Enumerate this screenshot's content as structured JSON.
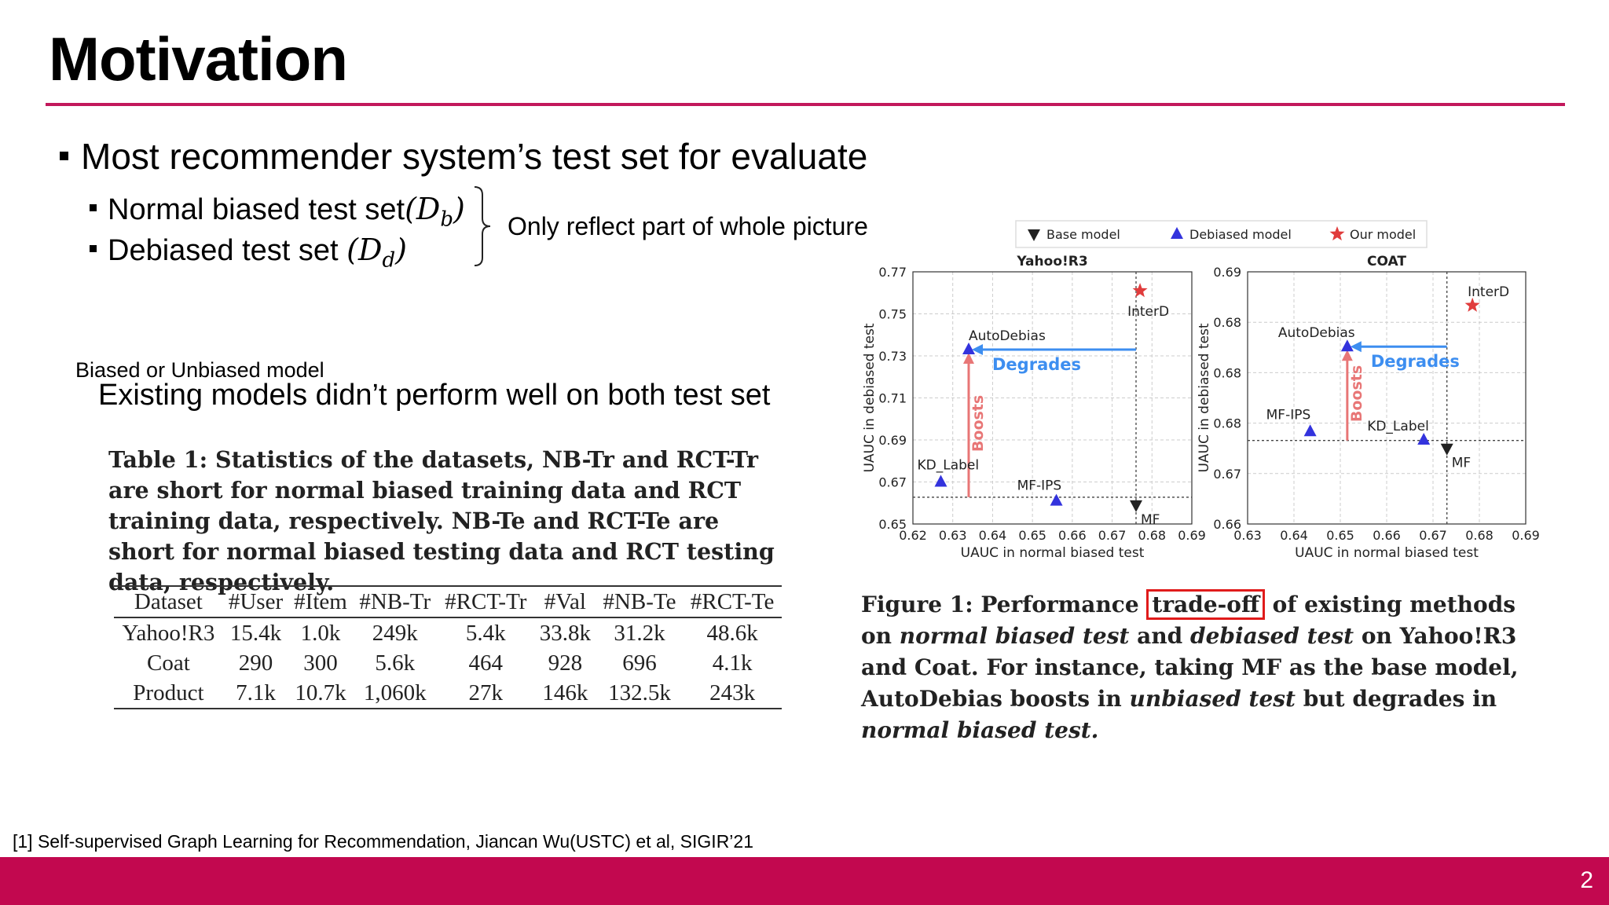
{
  "slide": {
    "title": "Motivation",
    "bullet_main": "Most recommender system’s test set for evaluate",
    "sub1_text": "Normal biased test set",
    "sub1_math": "(D",
    "sub1_sub": "b",
    "sub1_close": ")",
    "sub2_text": "Debiased test set ",
    "sub2_math": "(D",
    "sub2_sub": "d",
    "sub2_close": ")",
    "brace_note": "Only reflect part of whole picture",
    "small_label": "Biased or Unbiased model",
    "existing_text": "Existing models didn’t perform well on both test set",
    "footnote": "[1] Self-supervised Graph Learning for Recommendation, Jiancan Wu(USTC) et al, SIGIR’21",
    "page_number": "2",
    "accent_color": "#c2084f"
  },
  "table": {
    "caption": "Table 1: Statistics of the datasets, NB-Tr and RCT-Tr are short for normal biased training data and RCT training data, respectively. NB-Te and RCT-Te are short for normal biased testing data and RCT testing data, respectively.",
    "headers": [
      "Dataset",
      "#User",
      "#Item",
      "#NB-Tr",
      "#RCT-Tr",
      "#Val",
      "#NB-Te",
      "#RCT-Te"
    ],
    "rows": [
      [
        "Yahoo!R3",
        "15.4k",
        "1.0k",
        "249k",
        "5.4k",
        "33.8k",
        "31.2k",
        "48.6k"
      ],
      [
        "Coat",
        "290",
        "300",
        "5.6k",
        "464",
        "928",
        "696",
        "4.1k"
      ],
      [
        "Product",
        "7.1k",
        "10.7k",
        "1,060k",
        "27k",
        "146k",
        "132.5k",
        "243k"
      ]
    ]
  },
  "figure": {
    "caption_part1": "Figure 1: Performance ",
    "caption_highlight": "trade-off",
    "caption_part2": " of existing methods on ",
    "caption_it1": "normal biased test",
    "caption_part3": " and ",
    "caption_it2": "debiased test",
    "caption_part4": " on Yahoo!R3 and Coat. For instance, taking MF as the base model, AutoDebias boosts in ",
    "caption_it3": "unbiased test",
    "caption_part5": " but degrades in ",
    "caption_it4": "normal biased test.",
    "legend": [
      {
        "label": "Base model",
        "marker": "triangle-down",
        "color": "#222222"
      },
      {
        "label": "Debiased model",
        "marker": "triangle-up",
        "color": "#3333dd"
      },
      {
        "label": "Our model",
        "marker": "star",
        "color": "#e03c3c"
      }
    ]
  },
  "chart_data": [
    {
      "type": "scatter",
      "title": "Yahoo!R3",
      "xlabel": "UAUC in normal biased test",
      "ylabel": "UAUC in debiased test",
      "xlim": [
        0.62,
        0.69
      ],
      "ylim": [
        0.65,
        0.77
      ],
      "xticks": [
        "0.62",
        "0.63",
        "0.64",
        "0.65",
        "0.66",
        "0.67",
        "0.68",
        "0.69"
      ],
      "yticks": [
        "0.65",
        "0.67",
        "0.69",
        "0.71",
        "0.73",
        "0.75",
        "0.77"
      ],
      "grid": true,
      "points": [
        {
          "name": "KD_Label",
          "group": "Debiased model",
          "x": 0.627,
          "y": 0.67
        },
        {
          "name": "AutoDebias",
          "group": "Debiased model",
          "x": 0.634,
          "y": 0.733
        },
        {
          "name": "MF-IPS",
          "group": "Debiased model",
          "x": 0.656,
          "y": 0.661
        },
        {
          "name": "MF",
          "group": "Base model",
          "x": 0.676,
          "y": 0.659
        },
        {
          "name": "InterD",
          "group": "Our model",
          "x": 0.677,
          "y": 0.761
        }
      ],
      "annotations": [
        "Degrades",
        "Boosts"
      ]
    },
    {
      "type": "scatter",
      "title": "COAT",
      "xlabel": "UAUC in normal biased test",
      "ylabel": "UAUC in debiased test",
      "xlim": [
        0.63,
        0.69
      ],
      "ylim": [
        0.66,
        0.69
      ],
      "xticks": [
        "0.63",
        "0.64",
        "0.65",
        "0.66",
        "0.67",
        "0.68",
        "0.69"
      ],
      "yticks": [
        "0.66",
        "0.67",
        "0.68",
        "0.68",
        "0.68",
        "0.69"
      ],
      "grid": true,
      "points": [
        {
          "name": "MF-IPS",
          "group": "Debiased model",
          "x": 0.6435,
          "y": 0.671
        },
        {
          "name": "AutoDebias",
          "group": "Debiased model",
          "x": 0.6515,
          "y": 0.6811
        },
        {
          "name": "KD_Label",
          "group": "Debiased model",
          "x": 0.668,
          "y": 0.67
        },
        {
          "name": "MF",
          "group": "Base model",
          "x": 0.673,
          "y": 0.669
        },
        {
          "name": "InterD",
          "group": "Our model",
          "x": 0.6785,
          "y": 0.686
        }
      ],
      "annotations": [
        "Degrades",
        "Boosts"
      ]
    }
  ]
}
